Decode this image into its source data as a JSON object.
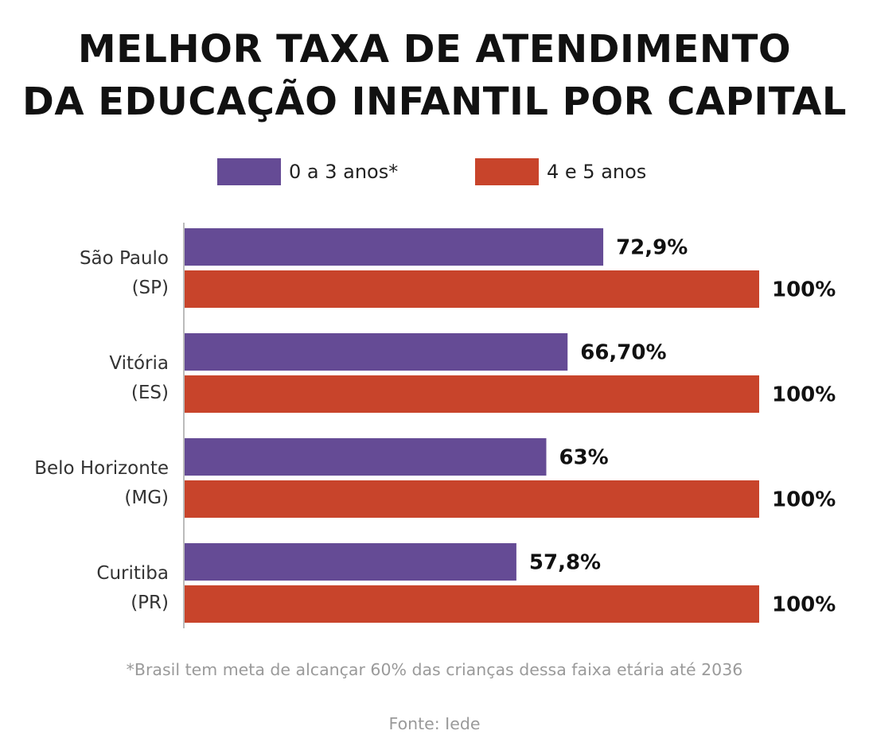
{
  "colors": {
    "series1": "#654b95",
    "series2": "#c8442b",
    "axis": "#bbbbbb"
  },
  "chart_data": {
    "type": "bar",
    "orientation": "horizontal",
    "title": "MELHOR TAXA DE ATENDIMENTO DA EDUCAÇÃO INFANTIL POR CAPITAL",
    "title_lines": [
      "MELHOR TAXA DE ATENDIMENTO",
      "DA EDUCAÇÃO INFANTIL POR CAPITAL"
    ],
    "legend_position": "top",
    "categories": [
      {
        "name": "São Paulo",
        "uf": "(SP)"
      },
      {
        "name": "Vitória",
        "uf": "(ES)"
      },
      {
        "name": "Belo Horizonte",
        "uf": "(MG)"
      },
      {
        "name": "Curitiba",
        "uf": "(PR)"
      }
    ],
    "series": [
      {
        "name": "0 a 3 anos*",
        "values": [
          72.9,
          66.7,
          63,
          57.8
        ],
        "labels": [
          "72,9%",
          "66,70%",
          "63%",
          "57,8%"
        ]
      },
      {
        "name": "4 e 5 anos",
        "values": [
          100,
          100,
          100,
          100
        ],
        "labels": [
          "100%",
          "100%",
          "100%",
          "100%"
        ]
      }
    ],
    "xlim": [
      0,
      100
    ],
    "grid": false,
    "note": "*Brasil tem meta de alcançar 60% das crianças dessa faixa etária até 2036",
    "source": "Fonte: Iede"
  }
}
